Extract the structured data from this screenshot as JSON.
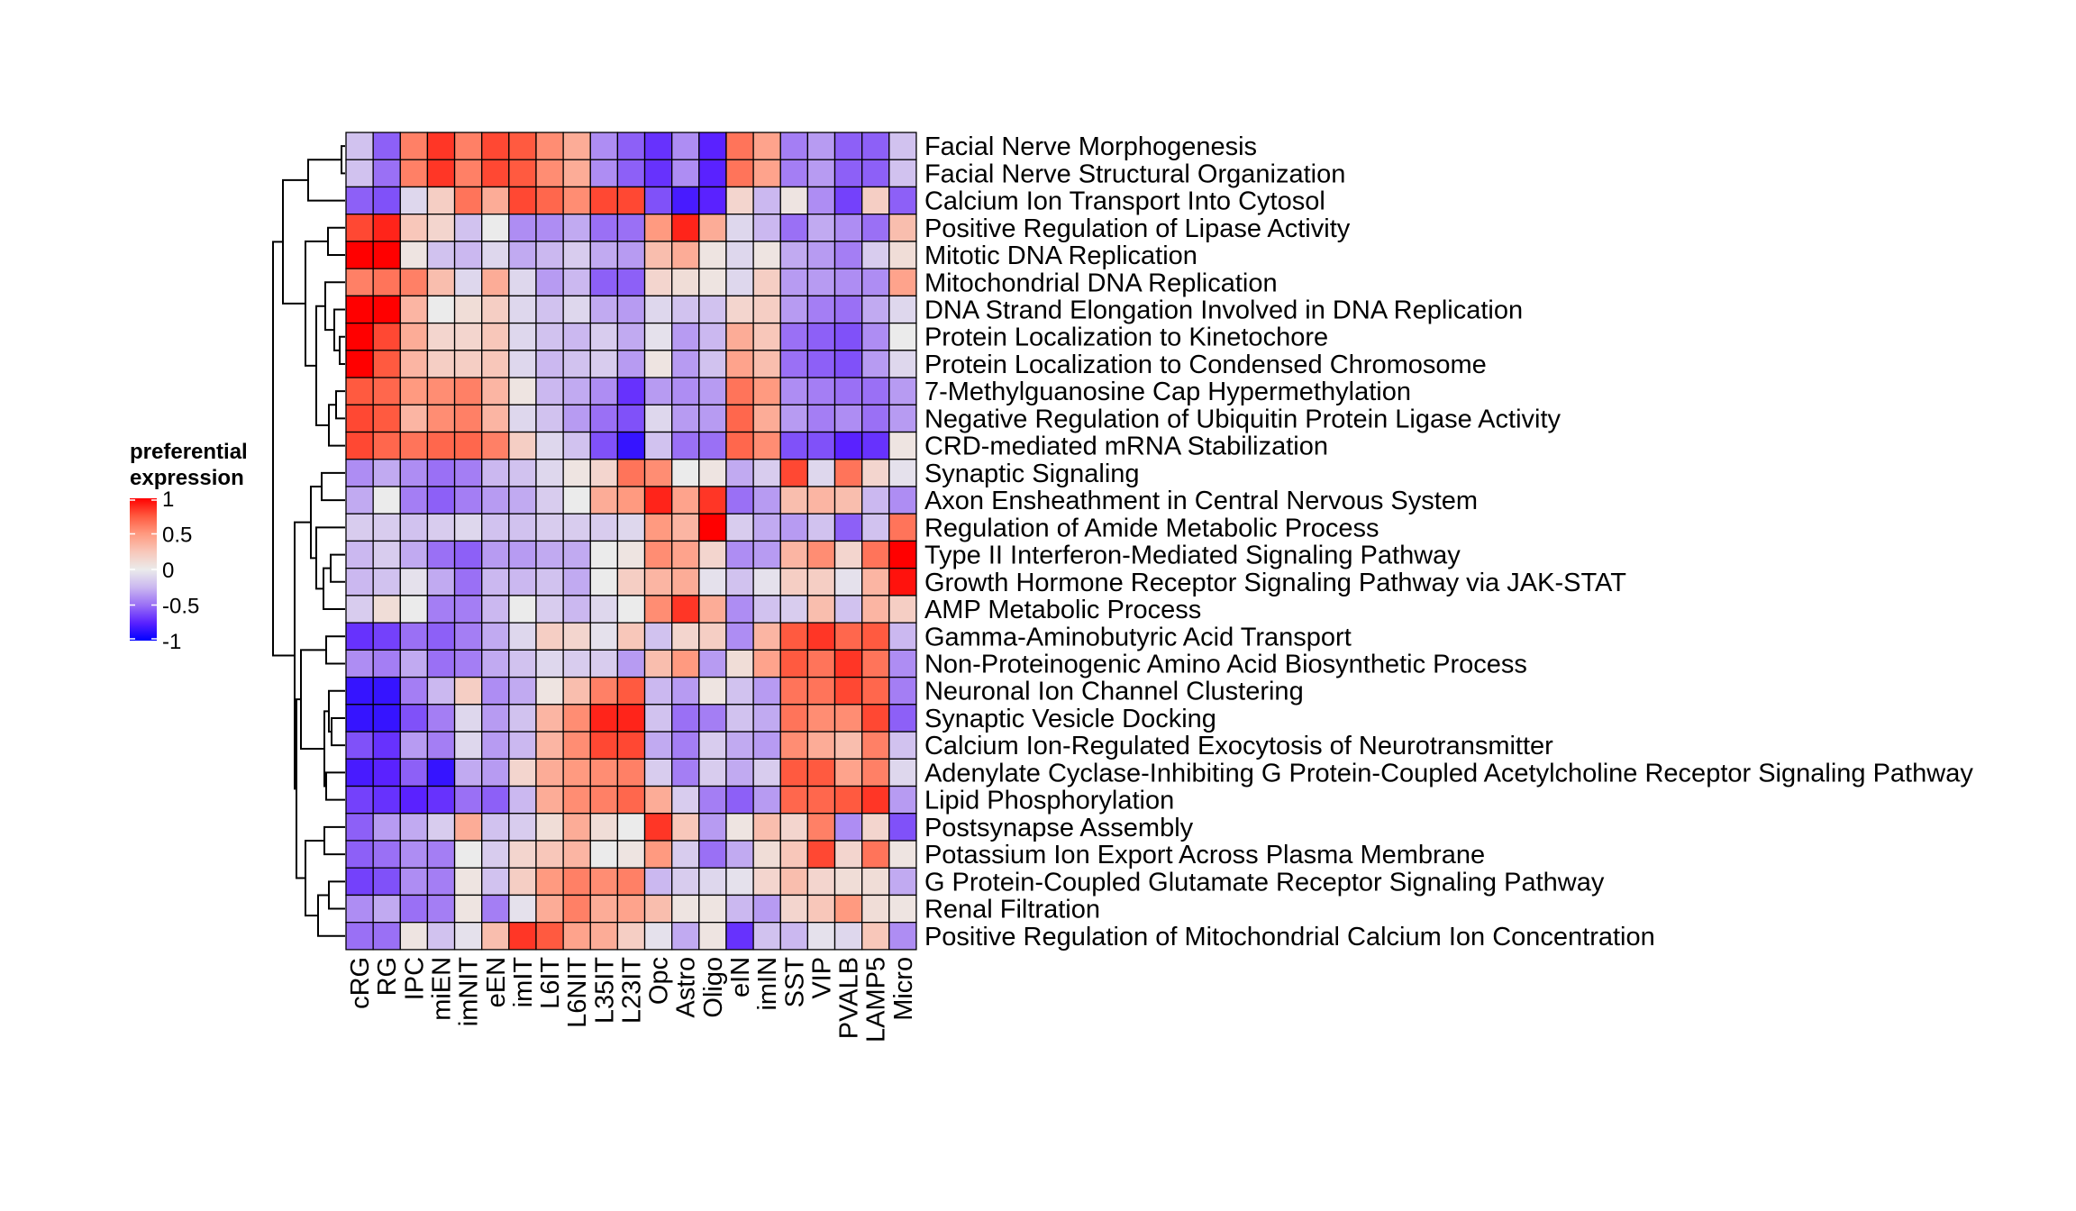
{
  "chart_data": {
    "type": "heatmap",
    "title": "",
    "legend": {
      "title_line1": "preferential",
      "title_line2": "expression",
      "ticks": [
        "1",
        "0.5",
        "0",
        "-0.5",
        "-1"
      ],
      "tick_values": [
        1,
        0.5,
        0,
        -0.5,
        -1
      ],
      "position": "left"
    },
    "color_scale": {
      "min": -1,
      "mid": 0,
      "max": 1,
      "low_color": "#0000FF",
      "mid_color": "#EBEBEB",
      "high_color": "#FF0000"
    },
    "row_dendrogram": true,
    "columns": [
      "cRG",
      "RG",
      "IPC",
      "miEN",
      "imNIT",
      "eEN",
      "imIT",
      "L6IT",
      "L6NIT",
      "L35IT",
      "L23IT",
      "Opc",
      "Astro",
      "Oligo",
      "eIN",
      "imIN",
      "SST",
      "VIP",
      "PVALB",
      "LAMP5",
      "Micro"
    ],
    "rows": [
      "Facial Nerve Morphogenesis",
      "Facial Nerve Structural Organization",
      "Calcium Ion Transport Into Cytosol",
      "Positive Regulation of Lipase Activity",
      "Mitotic DNA Replication",
      "Mitochondrial DNA Replication",
      "DNA Strand Elongation Involved in DNA Replication",
      "Protein Localization to Kinetochore",
      "Protein Localization to Condensed Chromosome",
      "7-Methylguanosine Cap Hypermethylation",
      "Negative Regulation of Ubiquitin Protein Ligase Activity",
      "CRD-mediated mRNA Stabilization",
      "Synaptic Signaling",
      "Axon Ensheathment in Central Nervous System",
      "Regulation of Amide Metabolic Process",
      "Type II Interferon-Mediated Signaling Pathway",
      "Growth Hormone Receptor Signaling Pathway via JAK-STAT",
      "AMP Metabolic Process",
      "Gamma-Aminobutyric Acid Transport",
      "Non-Proteinogenic Amino Acid Biosynthetic Process",
      "Neuronal Ion Channel Clustering",
      "Synaptic Vesicle Docking",
      "Calcium Ion-Regulated Exocytosis of Neurotransmitter",
      "Adenylate Cyclase-Inhibiting G Protein-Coupled Acetylcholine Receptor Signaling Pathway",
      "Lipid Phosphorylation",
      "Postsynapse Assembly",
      "Potassium Ion Export Across Plasma Membrane",
      "G Protein-Coupled Glutamate Receptor Signaling Pathway",
      "Renal Filtration",
      "Positive Regulation of Mitochondrial Calcium Ion Concentration"
    ],
    "values": [
      [
        -0.2,
        -0.55,
        0.6,
        0.85,
        0.6,
        0.8,
        0.75,
        0.55,
        0.4,
        -0.4,
        -0.55,
        -0.7,
        -0.4,
        -0.75,
        0.65,
        0.45,
        -0.45,
        -0.35,
        -0.55,
        -0.55,
        -0.2
      ],
      [
        -0.2,
        -0.5,
        0.6,
        0.85,
        0.6,
        0.8,
        0.75,
        0.55,
        0.4,
        -0.4,
        -0.55,
        -0.7,
        -0.4,
        -0.75,
        0.65,
        0.45,
        -0.45,
        -0.35,
        -0.55,
        -0.55,
        -0.2
      ],
      [
        -0.55,
        -0.6,
        -0.1,
        0.2,
        0.65,
        0.4,
        0.8,
        0.7,
        0.55,
        0.8,
        0.8,
        -0.6,
        -0.8,
        -0.75,
        0.15,
        -0.25,
        0.05,
        -0.4,
        -0.65,
        0.2,
        -0.55
      ],
      [
        0.8,
        0.9,
        0.25,
        0.15,
        -0.2,
        0.0,
        -0.4,
        -0.4,
        -0.3,
        -0.5,
        -0.5,
        0.5,
        0.9,
        0.4,
        -0.1,
        -0.25,
        -0.5,
        -0.3,
        -0.4,
        -0.5,
        0.3
      ],
      [
        1,
        1,
        0.05,
        -0.2,
        -0.25,
        -0.1,
        -0.3,
        -0.25,
        -0.15,
        -0.3,
        -0.35,
        0.3,
        0.4,
        0.05,
        -0.1,
        0.05,
        -0.3,
        -0.35,
        -0.45,
        -0.15,
        0.1
      ],
      [
        0.6,
        0.65,
        0.6,
        0.3,
        -0.1,
        0.4,
        -0.1,
        -0.35,
        -0.25,
        -0.55,
        -0.55,
        0.15,
        0.1,
        0.05,
        -0.1,
        0.2,
        -0.35,
        -0.35,
        -0.4,
        -0.4,
        0.45
      ],
      [
        1,
        1,
        0.35,
        0,
        0.1,
        0.2,
        -0.1,
        -0.2,
        -0.1,
        -0.3,
        -0.35,
        -0.1,
        -0.2,
        -0.2,
        0.15,
        0.2,
        -0.35,
        -0.45,
        -0.5,
        -0.3,
        -0.1
      ],
      [
        1,
        0.8,
        0.4,
        0.15,
        0.15,
        0.25,
        -0.1,
        -0.2,
        -0.25,
        -0.15,
        -0.3,
        -0.05,
        -0.35,
        -0.25,
        0.4,
        0.25,
        -0.5,
        -0.55,
        -0.6,
        -0.4,
        0
      ],
      [
        1,
        0.75,
        0.35,
        0.2,
        0.2,
        0.25,
        -0.1,
        -0.25,
        -0.2,
        -0.15,
        -0.35,
        0.05,
        -0.35,
        -0.2,
        0.45,
        0.3,
        -0.5,
        -0.55,
        -0.6,
        -0.35,
        -0.1
      ],
      [
        0.75,
        0.7,
        0.5,
        0.55,
        0.6,
        0.35,
        0.05,
        -0.25,
        -0.3,
        -0.4,
        -0.7,
        -0.35,
        -0.4,
        -0.35,
        0.65,
        0.5,
        -0.4,
        -0.45,
        -0.5,
        -0.5,
        -0.35
      ],
      [
        0.8,
        0.75,
        0.35,
        0.55,
        0.6,
        0.35,
        -0.1,
        -0.2,
        -0.35,
        -0.5,
        -0.6,
        -0.1,
        -0.35,
        -0.35,
        0.7,
        0.4,
        -0.35,
        -0.45,
        -0.4,
        -0.5,
        -0.35
      ],
      [
        0.8,
        0.7,
        0.65,
        0.7,
        0.7,
        0.6,
        0.2,
        -0.1,
        -0.2,
        -0.6,
        -0.85,
        -0.2,
        -0.5,
        -0.5,
        0.7,
        0.55,
        -0.6,
        -0.6,
        -0.75,
        -0.7,
        0.05
      ],
      [
        -0.4,
        -0.3,
        -0.4,
        -0.5,
        -0.45,
        -0.25,
        -0.2,
        -0.1,
        0.05,
        0.15,
        0.65,
        0.55,
        0.0,
        0.05,
        -0.3,
        -0.15,
        0.8,
        -0.1,
        0.65,
        0.15,
        -0.05
      ],
      [
        -0.3,
        0,
        -0.45,
        -0.55,
        -0.45,
        -0.35,
        -0.3,
        -0.15,
        0,
        0.4,
        0.5,
        0.9,
        0.45,
        0.85,
        -0.5,
        -0.35,
        0.3,
        0.35,
        0.3,
        -0.25,
        -0.4
      ],
      [
        -0.15,
        -0.15,
        -0.2,
        -0.15,
        -0.1,
        -0.2,
        -0.2,
        -0.15,
        -0.15,
        -0.15,
        -0.1,
        0.5,
        0.35,
        1.0,
        -0.15,
        -0.3,
        -0.35,
        -0.2,
        -0.55,
        -0.2,
        0.65
      ],
      [
        -0.25,
        -0.15,
        -0.3,
        -0.5,
        -0.55,
        -0.35,
        -0.35,
        -0.3,
        -0.3,
        0,
        0.05,
        0.55,
        0.45,
        0.15,
        -0.4,
        -0.35,
        0.35,
        0.55,
        0.15,
        0.65,
        1.0
      ],
      [
        -0.25,
        -0.2,
        -0.05,
        -0.3,
        -0.5,
        -0.25,
        -0.25,
        -0.2,
        -0.3,
        0,
        0.2,
        0.35,
        0.4,
        -0.05,
        -0.2,
        -0.05,
        0.2,
        0.2,
        -0.05,
        0.35,
        0.95
      ],
      [
        -0.15,
        0.1,
        0,
        -0.45,
        -0.45,
        -0.25,
        0,
        -0.15,
        -0.25,
        -0.1,
        0,
        0.55,
        0.85,
        0.4,
        -0.4,
        -0.2,
        -0.15,
        0.3,
        -0.2,
        0.35,
        0.2
      ],
      [
        -0.7,
        -0.65,
        -0.5,
        -0.55,
        -0.45,
        -0.3,
        -0.1,
        0.2,
        0.15,
        -0.05,
        0.25,
        -0.2,
        0.15,
        0.2,
        -0.4,
        0.35,
        0.75,
        0.85,
        0.7,
        0.75,
        -0.25
      ],
      [
        -0.4,
        -0.45,
        -0.3,
        -0.5,
        -0.45,
        -0.3,
        -0.2,
        -0.1,
        -0.15,
        -0.15,
        -0.35,
        0.3,
        0.5,
        -0.35,
        0.1,
        0.45,
        0.75,
        0.65,
        0.85,
        0.65,
        -0.4
      ],
      [
        -0.85,
        -0.85,
        -0.45,
        -0.25,
        0.2,
        -0.4,
        -0.3,
        0.05,
        0.3,
        0.6,
        0.75,
        -0.25,
        -0.35,
        0.05,
        -0.2,
        -0.35,
        0.65,
        0.65,
        0.8,
        0.7,
        -0.45
      ],
      [
        -0.85,
        -0.85,
        -0.6,
        -0.45,
        -0.1,
        -0.35,
        -0.2,
        0.35,
        0.55,
        0.9,
        0.9,
        -0.2,
        -0.5,
        -0.45,
        -0.2,
        -0.3,
        0.65,
        0.55,
        0.55,
        0.8,
        -0.55
      ],
      [
        -0.6,
        -0.7,
        -0.35,
        -0.45,
        -0.1,
        -0.35,
        -0.25,
        0.35,
        0.55,
        0.8,
        0.8,
        -0.3,
        -0.45,
        -0.15,
        -0.3,
        -0.35,
        0.55,
        0.4,
        0.3,
        0.6,
        -0.2
      ],
      [
        -0.8,
        -0.75,
        -0.55,
        -0.85,
        -0.3,
        -0.35,
        0.15,
        0.4,
        0.5,
        0.55,
        0.6,
        -0.15,
        -0.45,
        -0.15,
        -0.3,
        -0.15,
        0.75,
        0.75,
        0.45,
        0.6,
        -0.1
      ],
      [
        -0.65,
        -0.7,
        -0.75,
        -0.7,
        -0.5,
        -0.55,
        -0.25,
        0.4,
        0.55,
        0.6,
        0.7,
        0.4,
        -0.15,
        -0.45,
        -0.55,
        -0.35,
        0.7,
        0.7,
        0.75,
        0.85,
        -0.35
      ],
      [
        -0.55,
        -0.35,
        -0.3,
        -0.15,
        0.4,
        -0.2,
        -0.15,
        0.1,
        0.4,
        0.1,
        0,
        0.85,
        0.25,
        -0.35,
        0.05,
        0.3,
        0.15,
        0.6,
        -0.4,
        0.15,
        -0.6
      ],
      [
        -0.55,
        -0.5,
        -0.4,
        -0.45,
        0,
        -0.15,
        0.15,
        0.25,
        0.35,
        0,
        0.05,
        0.5,
        -0.15,
        -0.5,
        -0.3,
        0.1,
        0.25,
        0.8,
        0.15,
        0.65,
        0.05
      ],
      [
        -0.65,
        -0.6,
        -0.4,
        -0.45,
        0.05,
        -0.2,
        0.2,
        0.5,
        0.6,
        0.55,
        0.6,
        -0.25,
        -0.15,
        -0.1,
        -0.05,
        0.15,
        0.3,
        0.15,
        0.1,
        0.1,
        -0.3
      ],
      [
        -0.4,
        -0.3,
        -0.5,
        -0.45,
        0.05,
        -0.45,
        -0.05,
        0.4,
        0.6,
        0.4,
        0.45,
        0.3,
        0.05,
        0.05,
        -0.25,
        -0.35,
        0.15,
        0.25,
        0.5,
        0.1,
        0.05
      ],
      [
        -0.5,
        -0.5,
        0.05,
        -0.2,
        -0.05,
        0.3,
        0.85,
        0.75,
        0.45,
        0.4,
        0.2,
        -0.05,
        -0.3,
        0.05,
        -0.7,
        -0.2,
        -0.25,
        -0.05,
        -0.1,
        0.25,
        -0.4
      ]
    ]
  }
}
